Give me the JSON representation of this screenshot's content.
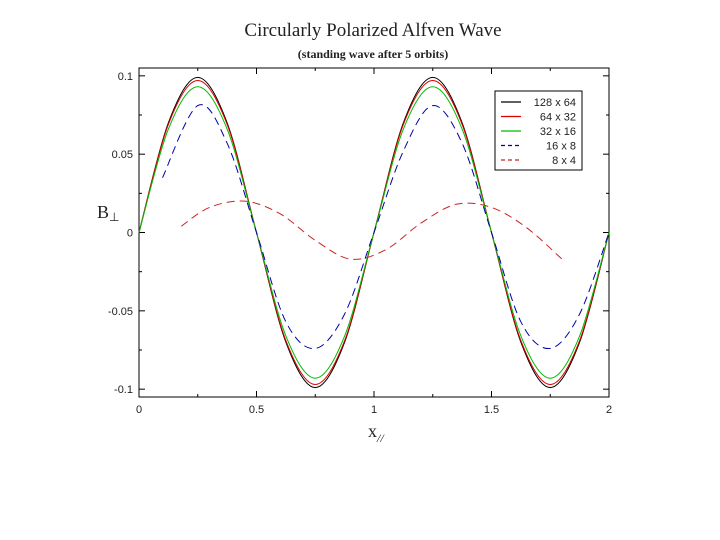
{
  "chart_data": {
    "type": "line",
    "title": "Circularly Polarized Alfven Wave",
    "subtitle": "(standing wave after 5 orbits)",
    "xlabel": {
      "main": "x",
      "sub": "//"
    },
    "ylabel": {
      "main": "B",
      "sub": "⊥"
    },
    "xlim": [
      0,
      2
    ],
    "ylim": [
      -0.105,
      0.105
    ],
    "x_ticks": [
      0,
      0.5,
      1,
      1.5,
      2
    ],
    "x_tick_labels": [
      "0",
      "0.5",
      "1",
      "1.5",
      "2"
    ],
    "y_ticks": [
      0.1,
      0.05,
      0,
      -0.05,
      -0.1
    ],
    "y_tick_labels": [
      "0.1",
      "0.05",
      "0",
      "-0.05",
      "-0.1"
    ],
    "grid": false,
    "legend_position": "top-right",
    "series": [
      {
        "name": "128 x 64",
        "color": "#000000",
        "style": "solid",
        "x": [
          0.0,
          0.125,
          0.25,
          0.375,
          0.5,
          0.625,
          0.75,
          0.875,
          1.0,
          1.125,
          1.25,
          1.375,
          1.5,
          1.625,
          1.75,
          1.875,
          2.0
        ],
        "y": [
          0.0,
          0.07,
          0.099,
          0.07,
          0.0,
          -0.07,
          -0.099,
          -0.07,
          0.0,
          0.07,
          0.099,
          0.07,
          0.0,
          -0.07,
          -0.099,
          -0.07,
          0.0
        ]
      },
      {
        "name": "64 x 32",
        "color": "#dd0000",
        "style": "solid",
        "x": [
          0.0,
          0.125,
          0.25,
          0.375,
          0.5,
          0.625,
          0.75,
          0.875,
          1.0,
          1.125,
          1.25,
          1.375,
          1.5,
          1.625,
          1.75,
          1.875,
          2.0
        ],
        "y": [
          0.0,
          0.069,
          0.097,
          0.069,
          0.0,
          -0.069,
          -0.097,
          -0.069,
          0.0,
          0.069,
          0.097,
          0.069,
          0.0,
          -0.069,
          -0.097,
          -0.069,
          0.0
        ]
      },
      {
        "name": "32 x 16",
        "color": "#00bb00",
        "style": "solid",
        "x": [
          0.0,
          0.125,
          0.25,
          0.375,
          0.5,
          0.625,
          0.75,
          0.875,
          1.0,
          1.125,
          1.25,
          1.375,
          1.5,
          1.625,
          1.75,
          1.875,
          2.0
        ],
        "y": [
          0.0,
          0.066,
          0.093,
          0.066,
          0.0,
          -0.066,
          -0.093,
          -0.066,
          0.0,
          0.066,
          0.093,
          0.066,
          0.0,
          -0.066,
          -0.093,
          -0.066,
          0.0
        ]
      },
      {
        "name": "16 x   8",
        "color": "#0000aa",
        "style": "dashed",
        "x": [
          0.1,
          0.25,
          0.375,
          0.5,
          0.625,
          0.75,
          0.875,
          1.0,
          1.125,
          1.25,
          1.375,
          1.5,
          1.625,
          1.75,
          1.875,
          2.0
        ],
        "y": [
          0.035,
          0.081,
          0.057,
          0.0,
          -0.057,
          -0.074,
          -0.052,
          0.0,
          0.052,
          0.081,
          0.057,
          0.0,
          -0.057,
          -0.074,
          -0.052,
          0.0
        ]
      },
      {
        "name": "8 x   4",
        "color": "#cc2222",
        "style": "dashed",
        "x": [
          0.18,
          0.3,
          0.45,
          0.6,
          0.75,
          0.9,
          1.05,
          1.2,
          1.35,
          1.5,
          1.65,
          1.8
        ],
        "y": [
          0.004,
          0.016,
          0.02,
          0.012,
          -0.005,
          -0.017,
          -0.011,
          0.006,
          0.018,
          0.016,
          0.003,
          -0.017
        ]
      }
    ]
  }
}
